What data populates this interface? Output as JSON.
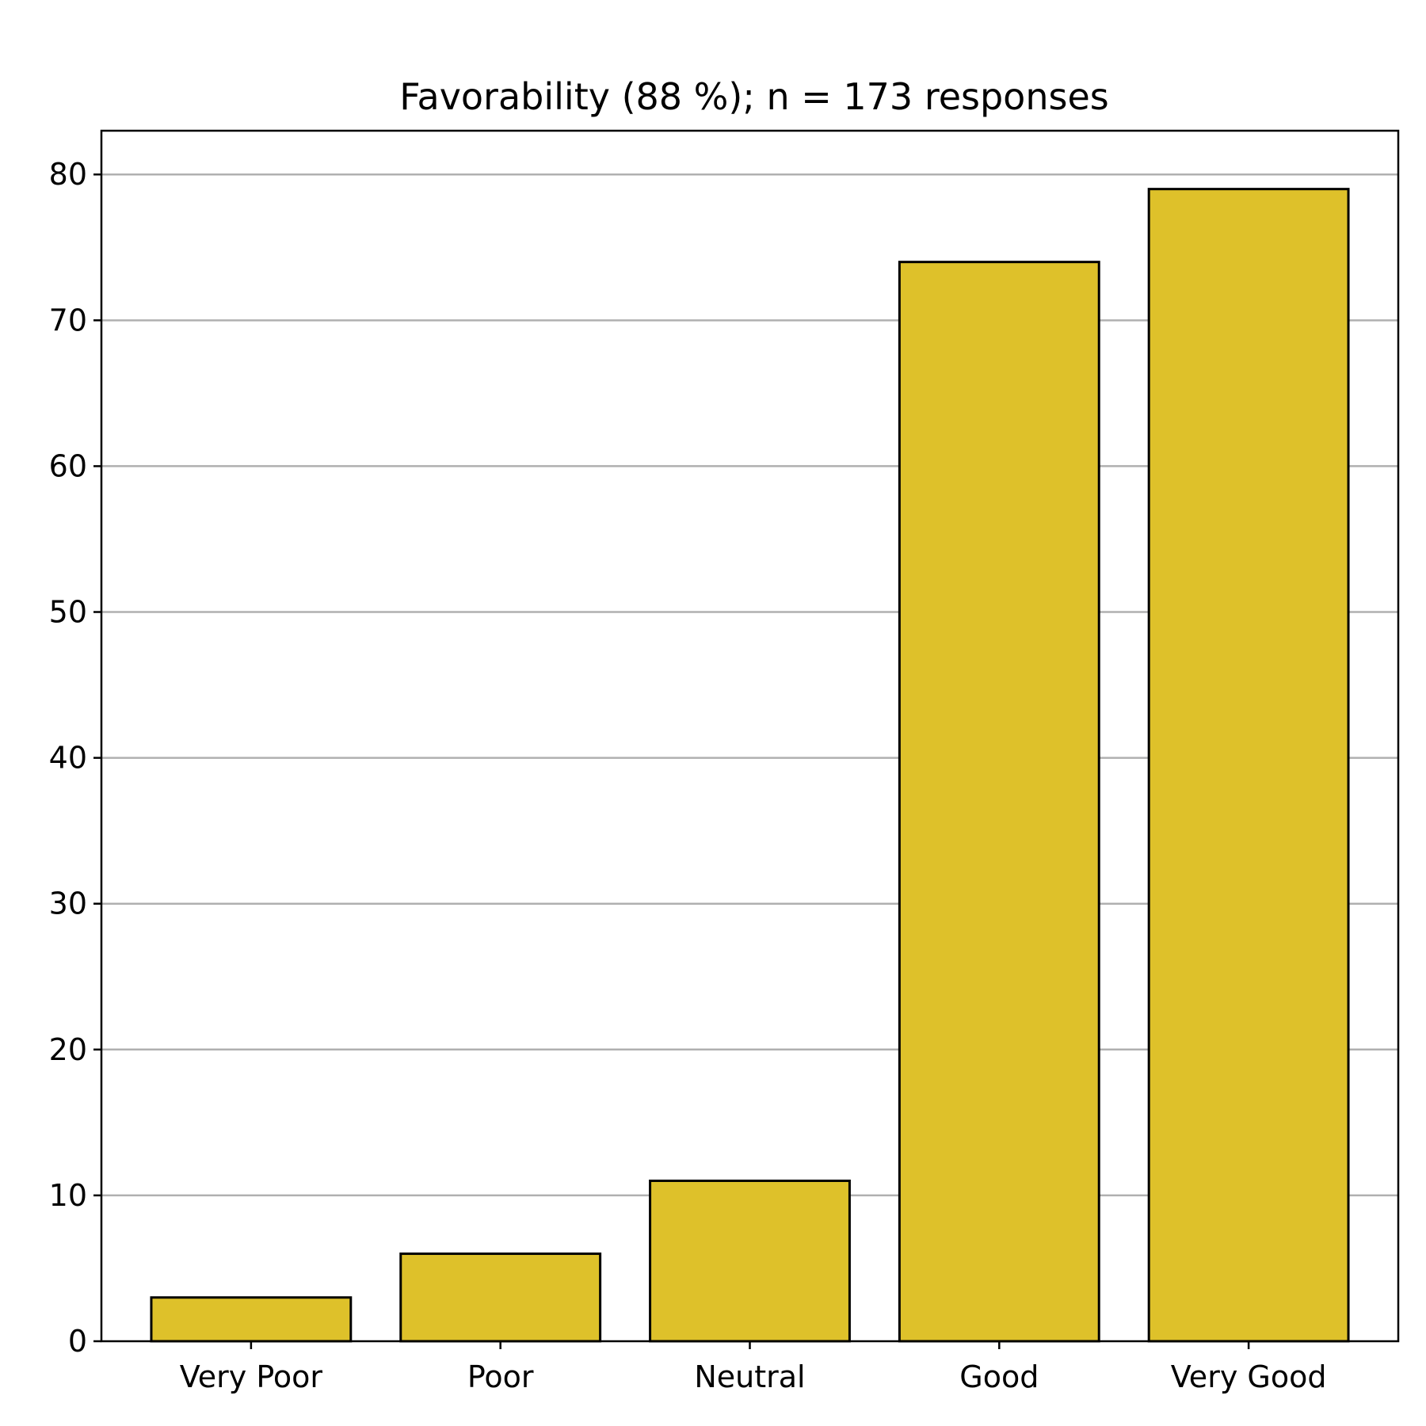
{
  "chart_data": {
    "type": "bar",
    "title": "Favorability (88 %); n = 173 responses",
    "xlabel": "",
    "ylabel": "",
    "categories": [
      "Very Poor",
      "Poor",
      "Neutral",
      "Good",
      "Very Good"
    ],
    "values": [
      3,
      6,
      11,
      74,
      79
    ],
    "ylim": [
      0,
      83
    ],
    "yticks": [
      0,
      10,
      20,
      30,
      40,
      50,
      60,
      70,
      80
    ],
    "grid": "y-axis",
    "legend": "none",
    "bar_color": "#dec12a",
    "bar_edge_color": "#000000",
    "grid_color": "#b0b0b0"
  }
}
